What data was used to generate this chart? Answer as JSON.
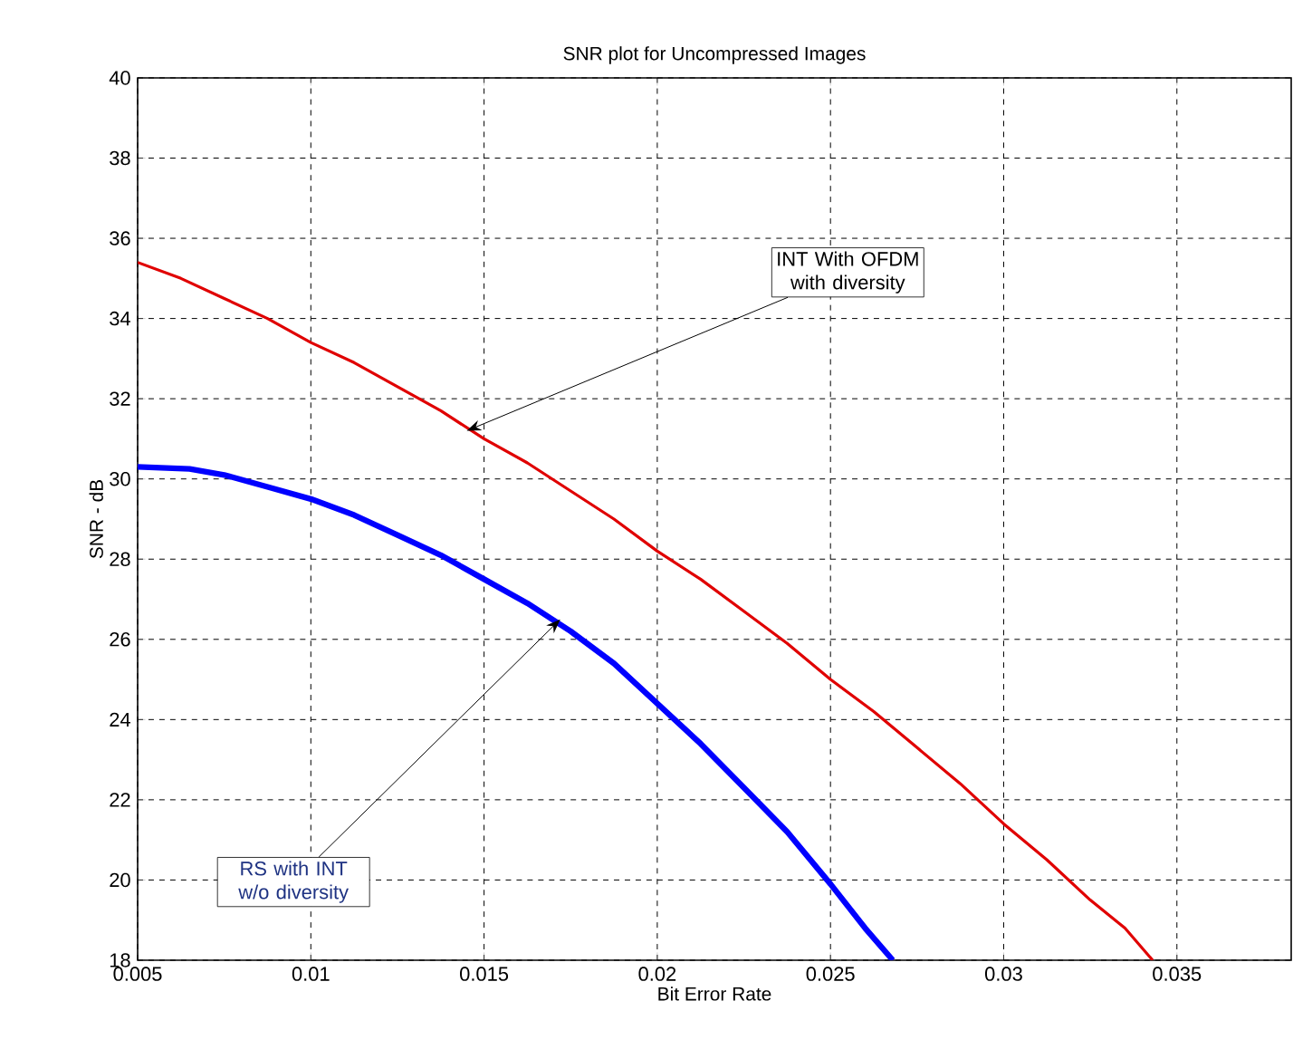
{
  "chart_data": {
    "type": "line",
    "title": "SNR plot for Uncompressed Images",
    "xlabel": "Bit Error Rate",
    "ylabel": "SNR - dB",
    "xlim": [
      0.005,
      0.0383
    ],
    "ylim": [
      18,
      40
    ],
    "xticks": [
      0.005,
      0.01,
      0.015,
      0.02,
      0.025,
      0.03,
      0.035
    ],
    "yticks": [
      18,
      20,
      22,
      24,
      26,
      28,
      30,
      32,
      34,
      36,
      38,
      40
    ],
    "grid": true,
    "series": [
      {
        "color": "#e00000",
        "x": [
          0.005,
          0.00625,
          0.0075,
          0.00875,
          0.01,
          0.01125,
          0.0125,
          0.01375,
          0.015,
          0.01625,
          0.0175,
          0.01875,
          0.02,
          0.02125,
          0.0225,
          0.02375,
          0.025,
          0.02625,
          0.0275,
          0.02875,
          0.03,
          0.03125,
          0.0325,
          0.0335,
          0.0343
        ],
        "values": [
          35.4,
          35.0,
          34.5,
          34.0,
          33.4,
          32.9,
          32.3,
          31.7,
          31.0,
          30.4,
          29.7,
          29.0,
          28.2,
          27.5,
          26.7,
          25.9,
          25.0,
          24.2,
          23.3,
          22.4,
          21.4,
          20.5,
          19.5,
          18.8,
          18.0
        ]
      },
      {
        "color": "#0000ff",
        "x": [
          0.005,
          0.0065,
          0.0075,
          0.00875,
          0.01,
          0.01125,
          0.0125,
          0.01375,
          0.015,
          0.01625,
          0.0175,
          0.01875,
          0.02,
          0.02125,
          0.0225,
          0.02375,
          0.025,
          0.026,
          0.0268
        ],
        "values": [
          30.3,
          30.25,
          30.1,
          29.8,
          29.5,
          29.1,
          28.6,
          28.1,
          27.5,
          26.9,
          26.2,
          25.4,
          24.4,
          23.4,
          22.3,
          21.2,
          19.9,
          18.8,
          18.0
        ]
      }
    ],
    "annotations": [
      {
        "text": "INT With OFDM with diversity",
        "x": 0.0145,
        "y": 31.2
      },
      {
        "text": "RS with INT w/o diversity",
        "x": 0.0172,
        "y": 26.5
      }
    ]
  }
}
